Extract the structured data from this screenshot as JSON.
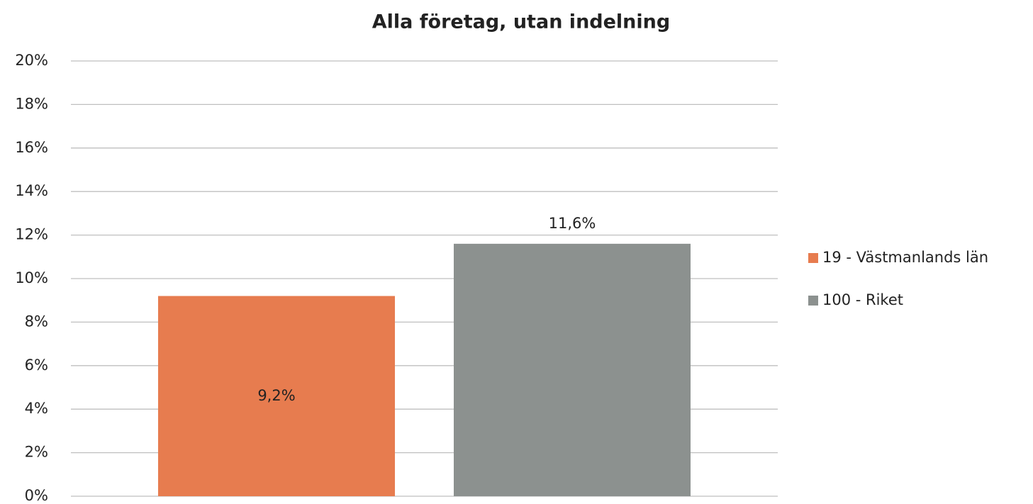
{
  "chart_data": {
    "type": "bar",
    "title": "Alla företag, utan indelning",
    "categories": [
      null
    ],
    "series": [
      {
        "name": "19 - Västmanlands län",
        "color": "#e77c4f",
        "values": [
          9.2
        ],
        "value_labels": [
          "9,2%"
        ]
      },
      {
        "name": "100 - Riket",
        "color": "#8c918f",
        "values": [
          11.6
        ],
        "value_labels": [
          "11,6%"
        ]
      }
    ],
    "ylim": [
      0,
      20
    ],
    "yticks": [
      {
        "value": 0,
        "label": "0%"
      },
      {
        "value": 2,
        "label": "2%"
      },
      {
        "value": 4,
        "label": "4%"
      },
      {
        "value": 6,
        "label": "6%"
      },
      {
        "value": 8,
        "label": "8%"
      },
      {
        "value": 10,
        "label": "10%"
      },
      {
        "value": 12,
        "label": "12%"
      },
      {
        "value": 14,
        "label": "14%"
      },
      {
        "value": 16,
        "label": "16%"
      },
      {
        "value": 18,
        "label": "18%"
      },
      {
        "value": 20,
        "label": "20%"
      }
    ],
    "grid": true,
    "legend": "right"
  }
}
